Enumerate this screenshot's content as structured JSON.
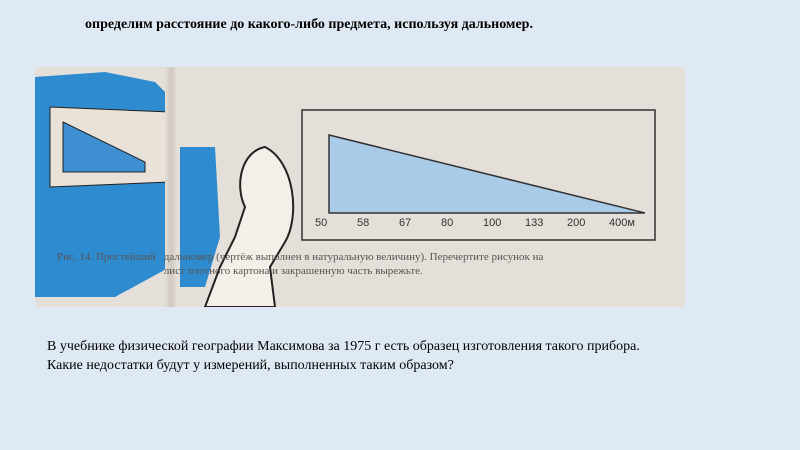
{
  "slide": {
    "title": "определим расстояние до какого-либо предмета, используя дальномер.",
    "body_lines": [
      "В учебнике физической географии Максимова за 1975 г есть образец изготовления такого прибора.",
      "Какие недостатки будут у измерений, выполненных таким образом?"
    ]
  },
  "figure": {
    "caption_left": "Рис. 14. Простейший",
    "caption_line1": "дальномер (чертёж выполнен в натуральную величину). Перечертите рисунок на",
    "caption_line2": "лист плотного картона и закрашенную часть вырежьте.",
    "scale_labels": [
      "50",
      "58",
      "67",
      "80",
      "100",
      "133",
      "200",
      "400м"
    ],
    "fill_color": "#a9cbe8",
    "illustration_color": "#2f8bd0"
  }
}
